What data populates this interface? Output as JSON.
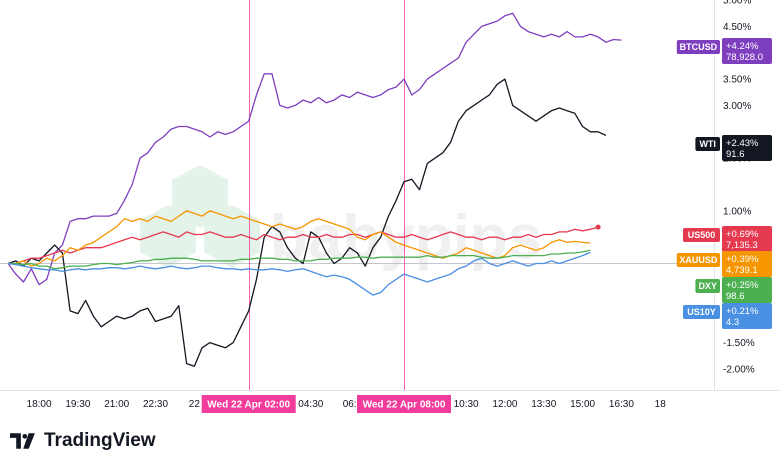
{
  "app": {
    "brand": "TradingView"
  },
  "watermark": "babypips",
  "chart_data": {
    "type": "line",
    "ylim": [
      -2.4,
      5.0
    ],
    "yticks": [
      "5.00%",
      "4.50%",
      "3.50%",
      "3.00%",
      "2.00%",
      "1.00%",
      "-1.50%",
      "-2.00%"
    ],
    "ytick_values": [
      5.0,
      4.5,
      3.5,
      3.0,
      2.0,
      1.0,
      -1.5,
      -2.0
    ],
    "xticks": [
      "18:00",
      "19:30",
      "21:00",
      "22:30",
      "22",
      "04:30",
      "06:",
      "10:30",
      "12:00",
      "13:30",
      "15:00",
      "16:30",
      "18"
    ],
    "xtick_index": [
      4,
      9,
      14,
      19,
      24,
      39,
      44,
      59,
      64,
      69,
      74,
      79,
      84
    ],
    "crosshair_labels": [
      {
        "text": "Wed 22 Apr   02:00",
        "index": 31
      },
      {
        "text": "Wed 22 Apr   08:00",
        "index": 51
      }
    ],
    "series": [
      {
        "name": "BTCUSD",
        "change": "+4.24%",
        "last": "78,928.0",
        "color": "#7e3fbf",
        "values": [
          0,
          -0.2,
          -0.35,
          -0.1,
          -0.4,
          -0.3,
          0.2,
          0.35,
          0.8,
          0.85,
          0.85,
          0.9,
          0.9,
          0.9,
          0.95,
          1.2,
          1.5,
          2.0,
          2.1,
          2.3,
          2.4,
          2.55,
          2.6,
          2.6,
          2.55,
          2.5,
          2.4,
          2.5,
          2.45,
          2.5,
          2.6,
          2.7,
          3.2,
          3.6,
          3.6,
          3.0,
          2.95,
          3.0,
          3.1,
          3.05,
          3.15,
          3.05,
          3.1,
          3.2,
          3.15,
          3.25,
          3.2,
          3.15,
          3.2,
          3.3,
          3.35,
          3.5,
          3.2,
          3.3,
          3.5,
          3.6,
          3.7,
          3.8,
          3.9,
          4.2,
          4.35,
          4.5,
          4.55,
          4.6,
          4.7,
          4.75,
          4.5,
          4.4,
          4.35,
          4.3,
          4.35,
          4.3,
          4.4,
          4.3,
          4.3,
          4.35,
          4.3,
          4.2,
          4.25,
          4.24
        ]
      },
      {
        "name": "WTI",
        "change": "+2.43%",
        "last": "91.6",
        "color": "#131722",
        "values": [
          0,
          0.05,
          -0.05,
          0.1,
          0.05,
          0.2,
          0.35,
          0.2,
          -0.9,
          -0.95,
          -0.7,
          -1.0,
          -1.2,
          -1.1,
          -1.0,
          -1.05,
          -1.0,
          -0.9,
          -0.85,
          -1.1,
          -1.05,
          -1.0,
          -0.8,
          -1.9,
          -1.95,
          -1.6,
          -1.5,
          -1.55,
          -1.6,
          -1.5,
          -1.2,
          -0.9,
          -0.3,
          0.5,
          0.7,
          0.6,
          0.3,
          0.1,
          0.0,
          0.6,
          0.5,
          0.2,
          0.0,
          0.1,
          0.3,
          0.2,
          -0.05,
          0.3,
          0.5,
          0.9,
          1.2,
          1.55,
          1.6,
          1.4,
          1.9,
          2.0,
          2.1,
          2.3,
          2.7,
          2.9,
          3.0,
          3.1,
          3.2,
          3.4,
          3.5,
          3.0,
          2.9,
          2.8,
          2.7,
          2.8,
          2.9,
          2.95,
          2.9,
          2.85,
          2.6,
          2.5,
          2.5,
          2.43
        ]
      },
      {
        "name": "US500",
        "change": "+0.69%",
        "last": "7,135.3",
        "color": "#e53950",
        "values": [
          0,
          0.0,
          0.05,
          0.1,
          0.1,
          0.15,
          0.2,
          0.25,
          0.2,
          0.25,
          0.3,
          0.3,
          0.3,
          0.35,
          0.4,
          0.45,
          0.5,
          0.45,
          0.5,
          0.55,
          0.6,
          0.55,
          0.5,
          0.6,
          0.55,
          0.55,
          0.6,
          0.55,
          0.5,
          0.5,
          0.55,
          0.5,
          0.45,
          0.55,
          0.5,
          0.45,
          0.5,
          0.5,
          0.55,
          0.5,
          0.5,
          0.55,
          0.5,
          0.5,
          0.55,
          0.55,
          0.5,
          0.55,
          0.6,
          0.55,
          0.5,
          0.5,
          0.55,
          0.5,
          0.45,
          0.5,
          0.55,
          0.6,
          0.55,
          0.5,
          0.5,
          0.45,
          0.5,
          0.5,
          0.45,
          0.5,
          0.5,
          0.55,
          0.5,
          0.55,
          0.55,
          0.6,
          0.6,
          0.65,
          0.62,
          0.65,
          0.69
        ]
      },
      {
        "name": "XAUUSD",
        "change": "+0.39%",
        "last": "4,739.1",
        "color": "#f59500",
        "values": [
          0,
          0.0,
          0.05,
          -0.05,
          0.0,
          0.1,
          0.05,
          0.15,
          0.3,
          0.25,
          0.35,
          0.4,
          0.5,
          0.6,
          0.7,
          0.85,
          0.8,
          0.85,
          0.8,
          0.9,
          0.85,
          0.8,
          0.9,
          1.0,
          0.95,
          0.9,
          1.0,
          0.95,
          0.9,
          0.85,
          0.9,
          0.85,
          0.8,
          0.75,
          0.7,
          0.75,
          0.7,
          0.65,
          0.7,
          0.8,
          0.85,
          0.8,
          0.75,
          0.7,
          0.65,
          0.5,
          0.45,
          0.55,
          0.6,
          0.5,
          0.4,
          0.35,
          0.3,
          0.25,
          0.2,
          0.15,
          0.1,
          0.15,
          0.2,
          0.3,
          0.25,
          0.2,
          0.15,
          0.1,
          0.15,
          0.3,
          0.35,
          0.3,
          0.25,
          0.3,
          0.4,
          0.45,
          0.4,
          0.42,
          0.4,
          0.39
        ]
      },
      {
        "name": "DXY",
        "change": "+0.25%",
        "last": "98.6",
        "color": "#4caf50",
        "values": [
          0,
          0.0,
          -0.02,
          0.0,
          -0.05,
          -0.05,
          -0.1,
          -0.08,
          -0.05,
          -0.05,
          -0.05,
          -0.02,
          0.0,
          0.0,
          -0.02,
          0.0,
          0.02,
          0.05,
          0.05,
          0.08,
          0.08,
          0.1,
          0.1,
          0.1,
          0.08,
          0.05,
          0.05,
          0.05,
          0.05,
          0.05,
          0.08,
          0.08,
          0.1,
          0.1,
          0.1,
          0.08,
          0.08,
          0.05,
          0.05,
          0.05,
          0.08,
          0.08,
          0.1,
          0.1,
          0.1,
          0.12,
          0.12,
          0.1,
          0.12,
          0.12,
          0.12,
          0.12,
          0.12,
          0.12,
          0.15,
          0.12,
          0.12,
          0.15,
          0.15,
          0.15,
          0.15,
          0.12,
          0.1,
          0.1,
          0.12,
          0.15,
          0.15,
          0.15,
          0.15,
          0.15,
          0.18,
          0.18,
          0.2,
          0.2,
          0.22,
          0.25
        ]
      },
      {
        "name": "US10Y",
        "change": "+0.21%",
        "last": "4.3",
        "color": "#4a90e2",
        "values": [
          0,
          -0.02,
          -0.05,
          -0.08,
          -0.1,
          -0.12,
          -0.12,
          -0.15,
          -0.12,
          -0.1,
          -0.12,
          -0.1,
          -0.1,
          -0.08,
          -0.08,
          -0.1,
          -0.08,
          -0.05,
          -0.08,
          -0.1,
          -0.08,
          -0.05,
          -0.08,
          -0.1,
          -0.08,
          -0.05,
          -0.05,
          -0.08,
          -0.1,
          -0.1,
          -0.12,
          -0.1,
          -0.12,
          -0.12,
          -0.1,
          -0.12,
          -0.15,
          -0.12,
          -0.1,
          -0.15,
          -0.2,
          -0.25,
          -0.22,
          -0.25,
          -0.3,
          -0.4,
          -0.5,
          -0.6,
          -0.55,
          -0.4,
          -0.3,
          -0.2,
          -0.25,
          -0.3,
          -0.35,
          -0.3,
          -0.25,
          -0.2,
          -0.1,
          -0.05,
          0.05,
          0.1,
          0.0,
          -0.05,
          0.0,
          0.05,
          0.0,
          -0.05,
          0.0,
          0.0,
          0.05,
          0.0,
          0.05,
          0.1,
          0.15,
          0.21
        ]
      }
    ]
  }
}
